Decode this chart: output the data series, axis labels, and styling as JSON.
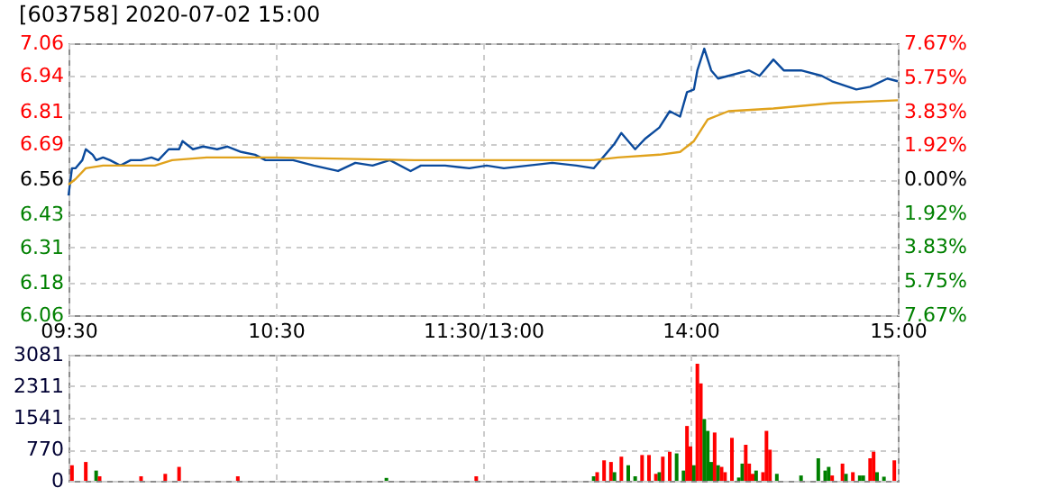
{
  "chart_data": [
    {
      "type": "line",
      "title": "[603758] 2020-07-02 15:00",
      "categories": [
        "09:30",
        null,
        null,
        null,
        null,
        null,
        null,
        null,
        null,
        null,
        null,
        null,
        null,
        null,
        null,
        null,
        null,
        null,
        null,
        null,
        null,
        null,
        null,
        null,
        null,
        null,
        null,
        null,
        null,
        null,
        null,
        null,
        null,
        null,
        null,
        null,
        null,
        null,
        null,
        null,
        null,
        null,
        null,
        null,
        null,
        null,
        null,
        null,
        null,
        null,
        null,
        null,
        null,
        null,
        null,
        null,
        null,
        null,
        null,
        null,
        "10:30",
        null,
        null,
        null,
        null,
        null,
        null,
        null,
        null,
        null,
        null,
        null,
        null,
        null,
        null,
        null,
        null,
        null,
        null,
        null,
        null,
        null,
        null,
        null,
        null,
        null,
        null,
        null,
        null,
        null,
        null,
        null,
        null,
        null,
        null,
        null,
        null,
        null,
        null,
        null,
        null,
        null,
        null,
        null,
        null,
        null,
        null,
        null,
        null,
        null,
        null,
        null,
        null,
        null,
        null,
        null,
        null,
        null,
        null,
        null,
        "11:30/13:00",
        null,
        null,
        null,
        null,
        null,
        null,
        null,
        null,
        null,
        null,
        null,
        null,
        null,
        null,
        null,
        null,
        null,
        null,
        null,
        null,
        null,
        null,
        null,
        null,
        null,
        null,
        null,
        null,
        null,
        null,
        null,
        null,
        null,
        null,
        null,
        null,
        null,
        null,
        null,
        null,
        null,
        null,
        null,
        null,
        null,
        null,
        null,
        null,
        null,
        null,
        null,
        null,
        null,
        null,
        null,
        null,
        null,
        null,
        null,
        "14:00",
        null,
        null,
        null,
        null,
        null,
        null,
        null,
        null,
        null,
        null,
        null,
        null,
        null,
        null,
        null,
        null,
        null,
        null,
        null,
        null,
        null,
        null,
        null,
        null,
        null,
        null,
        null,
        null,
        null,
        null,
        null,
        null,
        null,
        null,
        null,
        null,
        null,
        null,
        null,
        null,
        null,
        null,
        null,
        null,
        null,
        null,
        null,
        null,
        null,
        null,
        null,
        null,
        null,
        null,
        null,
        null,
        null,
        null,
        null,
        "15:00"
      ],
      "ylim": [
        6.06,
        7.06
      ],
      "yticks": [
        6.06,
        6.18,
        6.31,
        6.43,
        6.56,
        6.69,
        6.81,
        6.94,
        7.06
      ],
      "y2lim": [
        -7.67,
        7.67
      ],
      "y2ticks": [
        {
          "value": -7.67,
          "label": "7.67%"
        },
        {
          "value": -5.75,
          "label": "5.75%"
        },
        {
          "value": -3.83,
          "label": "3.83%"
        },
        {
          "value": -1.92,
          "label": "1.92%"
        },
        {
          "value": 0,
          "label": "0.00%"
        },
        {
          "value": 1.92,
          "label": "1.92%"
        },
        {
          "value": 3.83,
          "label": "3.83%"
        },
        {
          "value": 5.75,
          "label": "5.75%"
        },
        {
          "value": 7.67,
          "label": "7.67%"
        }
      ],
      "grid": true,
      "series": [
        {
          "color": "#0b4a9c",
          "values": [
            6.5,
            6.6,
            6.6,
            null,
            6.63,
            6.67,
            null,
            6.65,
            6.63,
            null,
            6.64,
            null,
            6.63,
            null,
            null,
            6.61,
            null,
            null,
            6.63,
            null,
            null,
            6.63,
            null,
            null,
            6.64,
            null,
            6.63,
            null,
            null,
            6.67,
            null,
            null,
            6.67,
            6.7,
            null,
            null,
            6.67,
            null,
            null,
            6.68,
            null,
            null,
            null,
            6.67,
            null,
            null,
            6.68,
            null,
            null,
            null,
            6.66,
            null,
            null,
            null,
            6.65,
            null,
            null,
            6.63,
            null,
            null,
            6.63,
            null,
            null,
            null,
            null,
            6.63,
            null,
            null,
            null,
            null,
            null,
            6.61,
            null,
            null,
            null,
            null,
            null,
            null,
            6.59,
            null,
            null,
            null,
            null,
            6.62,
            null,
            null,
            null,
            null,
            6.61,
            null,
            null,
            null,
            null,
            6.63,
            null,
            null,
            null,
            null,
            null,
            6.59,
            null,
            null,
            6.61,
            null,
            null,
            null,
            null,
            null,
            null,
            6.61,
            null,
            null,
            null,
            null,
            null,
            null,
            6.6,
            null,
            null,
            null,
            null,
            6.61,
            null,
            null,
            null,
            null,
            6.6,
            null,
            null,
            null,
            null,
            null,
            null,
            6.61,
            null,
            null,
            null,
            null,
            null,
            null,
            6.62,
            null,
            null,
            null,
            null,
            null,
            null,
            6.61,
            null,
            null,
            null,
            null,
            6.6,
            null,
            6.63,
            null,
            null,
            null,
            6.69,
            null,
            6.73,
            null,
            null,
            null,
            6.67,
            null,
            null,
            6.71,
            null,
            null,
            null,
            6.75,
            null,
            null,
            6.81,
            null,
            null,
            6.79,
            null,
            6.88,
            null,
            6.89,
            6.96,
            null,
            7.04,
            null,
            6.96,
            null,
            6.93,
            null,
            null,
            6.94,
            null,
            null,
            null,
            null,
            null,
            6.96,
            null,
            null,
            6.94,
            null,
            null,
            null,
            7.0,
            null,
            null,
            6.96,
            null,
            null,
            null,
            null,
            6.96,
            null,
            null,
            null,
            null,
            null,
            6.94,
            null,
            null,
            6.92,
            null,
            null,
            null,
            null,
            null,
            null,
            6.89,
            null,
            null,
            null,
            6.9,
            null,
            null,
            null,
            null,
            6.93,
            null,
            null,
            6.92
          ]
        },
        {
          "color": "#e0a21c",
          "values": [
            6.54,
            null,
            6.56,
            null,
            null,
            6.6,
            null,
            null,
            null,
            null,
            6.61,
            null,
            null,
            null,
            null,
            null,
            null,
            null,
            null,
            null,
            null,
            null,
            null,
            null,
            null,
            6.61,
            null,
            null,
            null,
            null,
            6.63,
            null,
            null,
            null,
            null,
            null,
            null,
            null,
            null,
            null,
            6.64,
            null,
            null,
            null,
            null,
            null,
            null,
            null,
            null,
            null,
            null,
            null,
            null,
            null,
            null,
            null,
            null,
            null,
            null,
            null,
            6.64,
            null,
            null,
            null,
            null,
            null,
            null,
            null,
            null,
            null,
            null,
            null,
            null,
            null,
            null,
            null,
            null,
            null,
            null,
            null,
            null,
            null,
            null,
            null,
            null,
            null,
            null,
            null,
            null,
            null,
            null,
            null,
            null,
            null,
            null,
            null,
            null,
            null,
            null,
            null,
            6.63,
            null,
            null,
            null,
            null,
            null,
            null,
            null,
            null,
            null,
            null,
            null,
            null,
            null,
            null,
            null,
            null,
            null,
            null,
            null,
            null,
            6.63,
            null,
            null,
            null,
            null,
            null,
            null,
            null,
            null,
            null,
            null,
            null,
            null,
            null,
            null,
            null,
            null,
            null,
            null,
            null,
            null,
            null,
            null,
            null,
            null,
            null,
            null,
            null,
            null,
            null,
            null,
            6.63,
            null,
            null,
            null,
            null,
            null,
            null,
            6.64,
            null,
            null,
            null,
            null,
            null,
            null,
            null,
            null,
            null,
            null,
            null,
            6.65,
            null,
            null,
            null,
            null,
            null,
            6.66,
            null,
            null,
            null,
            6.7,
            null,
            null,
            null,
            6.78,
            null,
            null,
            null,
            null,
            null,
            6.81,
            null,
            null,
            null,
            null,
            null,
            null,
            null,
            null,
            null,
            null,
            null,
            null,
            6.82,
            null,
            null,
            null,
            null,
            null,
            null,
            null,
            null,
            null,
            null,
            null,
            null,
            null,
            null,
            null,
            null,
            6.84,
            null,
            null,
            null,
            null,
            null,
            null,
            null,
            null,
            null,
            null,
            null,
            null,
            null,
            null,
            null,
            null,
            null,
            null,
            6.85
          ]
        }
      ]
    },
    {
      "type": "bar",
      "tick_labels": "y",
      "ylim": [
        0,
        3081
      ],
      "yticks": [
        0,
        770,
        1541,
        2311,
        3081
      ],
      "grid": true,
      "categories": [
        null,
        null,
        null,
        null,
        null,
        null,
        null,
        null,
        null,
        null,
        null,
        null,
        null,
        null,
        null,
        null,
        null,
        null,
        null,
        null,
        null,
        null,
        null,
        null,
        null,
        null,
        null,
        null,
        null,
        null,
        null,
        null,
        null,
        null,
        null,
        null,
        null,
        null,
        null,
        null,
        null,
        null,
        null,
        null,
        null,
        null,
        null,
        null,
        null,
        null,
        null,
        null,
        null,
        null,
        null,
        null,
        null,
        null,
        null,
        null,
        null,
        null,
        null,
        null,
        null,
        null,
        null,
        null,
        null,
        null,
        null,
        null,
        null,
        null,
        null,
        null,
        null,
        null,
        null,
        null,
        null,
        null,
        null,
        null,
        null,
        null,
        null,
        null,
        null,
        null,
        null,
        null,
        null,
        null,
        null,
        null,
        null,
        null,
        null,
        null,
        null,
        null,
        null,
        null,
        null,
        null,
        null,
        null,
        null,
        null,
        null,
        null,
        null,
        null,
        null,
        null,
        null,
        null,
        null,
        null,
        null,
        null,
        null,
        null,
        null,
        null,
        null,
        null,
        null,
        null,
        null,
        null,
        null,
        null,
        null,
        null,
        null,
        null,
        null,
        null,
        null,
        null,
        null,
        null,
        null,
        null,
        null,
        null,
        null,
        null,
        null,
        null,
        null,
        null,
        null,
        null,
        null,
        null,
        null,
        null,
        null,
        null,
        null,
        null,
        null,
        null,
        null,
        null,
        null,
        null,
        null,
        null,
        null,
        null,
        null,
        null,
        null,
        null,
        null,
        null,
        null,
        null,
        null,
        null,
        null,
        null,
        null,
        null,
        null,
        null,
        null,
        null,
        null,
        null,
        null,
        null,
        null,
        null,
        null,
        null,
        null,
        null,
        null,
        null,
        null,
        null,
        null,
        null,
        null,
        null,
        null,
        null,
        null,
        null,
        null,
        null,
        null,
        null,
        null,
        null,
        null,
        null,
        null,
        null,
        null,
        null,
        null,
        null,
        null,
        null,
        null,
        null,
        null,
        null,
        null,
        null,
        null,
        null,
        null,
        null,
        null
      ],
      "values": [
        null,
        380,
        null,
        null,
        null,
        460,
        null,
        null,
        250,
        110,
        null,
        null,
        null,
        null,
        null,
        null,
        null,
        null,
        null,
        null,
        null,
        110,
        null,
        null,
        null,
        null,
        null,
        null,
        170,
        null,
        null,
        null,
        340,
        null,
        null,
        null,
        null,
        null,
        null,
        null,
        null,
        null,
        null,
        null,
        null,
        null,
        null,
        null,
        null,
        110,
        null,
        null,
        null,
        null,
        null,
        null,
        null,
        null,
        null,
        null,
        null,
        null,
        null,
        null,
        null,
        null,
        null,
        null,
        null,
        null,
        null,
        null,
        null,
        null,
        null,
        null,
        null,
        null,
        null,
        null,
        null,
        null,
        null,
        null,
        null,
        null,
        null,
        null,
        null,
        null,
        null,
        null,
        70,
        null,
        null,
        null,
        null,
        null,
        null,
        null,
        null,
        null,
        null,
        null,
        null,
        null,
        null,
        null,
        null,
        null,
        null,
        null,
        null,
        null,
        null,
        null,
        null,
        null,
        110,
        null,
        null,
        null,
        null,
        null,
        null,
        null,
        null,
        null,
        null,
        null,
        null,
        null,
        null,
        null,
        null,
        null,
        null,
        null,
        null,
        null,
        null,
        null,
        null,
        null,
        null,
        null,
        null,
        null,
        null,
        null,
        null,
        null,
        110,
        210,
        null,
        500,
        null,
        460,
        210,
        null,
        590,
        null,
        380,
        null,
        110,
        null,
        630,
        null,
        630,
        null,
        170,
        210,
        590,
        null,
        710,
        null,
        670,
        null,
        250,
        1340,
        840,
        380,
        2860,
        2380,
        1510,
        1220,
        460,
        1180,
        380,
        340,
        210,
        null,
        1050,
        null,
        80,
        420,
        880,
        420,
        170,
        250,
        null,
        210,
        1220,
        760,
        null,
        170,
        null,
        null,
        null,
        null,
        null,
        null,
        130,
        null,
        null,
        null,
        null,
        550,
        null,
        250,
        340,
        130,
        null,
        null,
        420,
        170,
        null,
        210,
        null,
        130,
        130,
        null,
        550,
        710,
        210,
        null,
        100,
        null,
        null,
        500,
        null
      ],
      "colors": [
        null,
        "#ff0000",
        null,
        null,
        null,
        "#ff0000",
        null,
        null,
        "#008000",
        "#ff0000",
        null,
        null,
        null,
        null,
        null,
        null,
        null,
        null,
        null,
        null,
        null,
        "#ff0000",
        null,
        null,
        null,
        null,
        null,
        null,
        "#ff0000",
        null,
        null,
        null,
        "#ff0000",
        null,
        null,
        null,
        null,
        null,
        null,
        null,
        null,
        null,
        null,
        null,
        null,
        null,
        null,
        null,
        null,
        "#ff0000",
        null,
        null,
        null,
        null,
        null,
        null,
        null,
        null,
        null,
        null,
        null,
        null,
        null,
        null,
        null,
        null,
        null,
        null,
        null,
        null,
        null,
        null,
        null,
        null,
        null,
        null,
        null,
        null,
        null,
        null,
        null,
        null,
        null,
        null,
        null,
        null,
        null,
        null,
        null,
        null,
        null,
        null,
        "#008000",
        null,
        null,
        null,
        null,
        null,
        null,
        null,
        null,
        null,
        null,
        null,
        null,
        null,
        null,
        null,
        null,
        null,
        null,
        null,
        null,
        null,
        null,
        null,
        null,
        null,
        "#ff0000",
        null,
        null,
        null,
        null,
        null,
        null,
        null,
        null,
        null,
        null,
        null,
        null,
        null,
        null,
        null,
        null,
        null,
        null,
        null,
        null,
        null,
        null,
        null,
        null,
        null,
        null,
        null,
        null,
        null,
        null,
        null,
        null,
        null,
        "#008000",
        "#ff0000",
        null,
        "#ff0000",
        null,
        "#ff0000",
        "#008000",
        null,
        "#ff0000",
        null,
        "#008000",
        null,
        "#008000",
        null,
        "#ff0000",
        null,
        "#ff0000",
        null,
        "#ff0000",
        "#008000",
        "#ff0000",
        null,
        "#ff0000",
        null,
        "#008000",
        null,
        "#008000",
        "#ff0000",
        "#ff0000",
        "#008000",
        "#ff0000",
        "#ff0000",
        "#008000",
        "#008000",
        "#008000",
        "#ff0000",
        "#008000",
        "#ff0000",
        "#ff0000",
        null,
        "#ff0000",
        null,
        "#008000",
        "#008000",
        "#ff0000",
        "#ff0000",
        "#ff0000",
        "#008000",
        null,
        "#ff0000",
        "#ff0000",
        "#ff0000",
        null,
        "#008000",
        null,
        null,
        null,
        null,
        null,
        null,
        "#008000",
        null,
        null,
        null,
        null,
        "#008000",
        null,
        "#008000",
        "#008000",
        "#ff0000",
        null,
        null,
        "#ff0000",
        "#008000",
        null,
        "#ff0000",
        null,
        "#008000",
        "#008000",
        null,
        "#ff0000",
        "#ff0000",
        "#008000",
        null,
        "#008000",
        null,
        null,
        "#ff0000",
        null
      ]
    }
  ]
}
